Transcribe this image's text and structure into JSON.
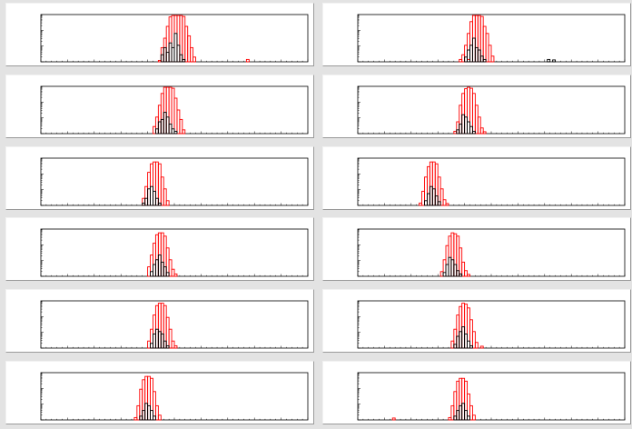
{
  "colors": {
    "background": "#e3e3e3",
    "pad": "#ffffff",
    "frame": "#000000",
    "series_red": "#ff0000",
    "series_black": "#000000"
  },
  "chart_data": [
    {
      "type": "bar",
      "xlim": [
        0,
        100
      ],
      "scale": "log",
      "series": [
        {
          "color": "#ff0000",
          "values": [
            [
              44,
              0.03
            ],
            [
              45,
              0.3
            ],
            [
              46,
              0.5
            ],
            [
              47,
              0.75
            ],
            [
              48,
              0.95
            ],
            [
              49,
              0.98
            ],
            [
              50,
              0.98
            ],
            [
              51,
              0.98
            ],
            [
              52,
              0.98
            ],
            [
              53,
              0.96
            ],
            [
              54,
              0.75
            ],
            [
              55,
              0.55
            ],
            [
              56,
              0.3
            ],
            [
              57,
              0.1
            ],
            [
              77,
              0.05
            ]
          ]
        },
        {
          "color": "#000000",
          "values": [
            [
              45,
              0.15
            ],
            [
              46,
              0.3
            ],
            [
              47,
              0.2
            ],
            [
              48,
              0.4
            ],
            [
              49,
              0.3
            ],
            [
              50,
              0.6
            ],
            [
              51,
              0.35
            ],
            [
              52,
              0.15
            ],
            [
              53,
              0.05
            ]
          ]
        }
      ]
    },
    {
      "type": "bar",
      "xlim": [
        0,
        100
      ],
      "scale": "log",
      "series": [
        {
          "color": "#ff0000",
          "values": [
            [
              39,
              0.15
            ],
            [
              40,
              0.35
            ],
            [
              41,
              0.6
            ],
            [
              42,
              0.85
            ],
            [
              43,
              0.98
            ],
            [
              44,
              0.98
            ],
            [
              45,
              0.98
            ],
            [
              46,
              0.96
            ],
            [
              47,
              0.75
            ],
            [
              48,
              0.6
            ],
            [
              49,
              0.35
            ],
            [
              50,
              0.12
            ],
            [
              41,
              0.05
            ],
            [
              38,
              0.05
            ]
          ]
        },
        {
          "color": "#000000",
          "values": [
            [
              40,
              0.1
            ],
            [
              41,
              0.25
            ],
            [
              42,
              0.35
            ],
            [
              43,
              0.5
            ],
            [
              44,
              0.3
            ],
            [
              45,
              0.25
            ],
            [
              46,
              0.12
            ],
            [
              47,
              0.05
            ],
            [
              71,
              0.05
            ],
            [
              73,
              0.04
            ]
          ]
        }
      ]
    },
    {
      "type": "bar",
      "xlim": [
        0,
        100
      ],
      "scale": "log",
      "series": [
        {
          "color": "#ff0000",
          "values": [
            [
              42,
              0.15
            ],
            [
              43,
              0.35
            ],
            [
              44,
              0.6
            ],
            [
              45,
              0.85
            ],
            [
              46,
              0.98
            ],
            [
              47,
              0.98
            ],
            [
              48,
              0.98
            ],
            [
              49,
              0.96
            ],
            [
              50,
              0.75
            ],
            [
              51,
              0.5
            ],
            [
              52,
              0.3
            ],
            [
              53,
              0.08
            ]
          ]
        },
        {
          "color": "#000000",
          "values": [
            [
              43,
              0.1
            ],
            [
              44,
              0.25
            ],
            [
              45,
              0.3
            ],
            [
              46,
              0.45
            ],
            [
              47,
              0.35
            ],
            [
              48,
              0.2
            ],
            [
              49,
              0.1
            ],
            [
              50,
              0.05
            ]
          ]
        }
      ]
    },
    {
      "type": "bar",
      "xlim": [
        0,
        100
      ],
      "scale": "log",
      "series": [
        {
          "color": "#ff0000",
          "values": [
            [
              36,
              0.05
            ],
            [
              37,
              0.25
            ],
            [
              38,
              0.6
            ],
            [
              39,
              0.85
            ],
            [
              40,
              0.95
            ],
            [
              41,
              0.98
            ],
            [
              42,
              0.96
            ],
            [
              43,
              0.85
            ],
            [
              44,
              0.6
            ],
            [
              45,
              0.35
            ],
            [
              46,
              0.12
            ],
            [
              47,
              0.04
            ]
          ]
        },
        {
          "color": "#000000",
          "values": [
            [
              37,
              0.08
            ],
            [
              38,
              0.2
            ],
            [
              39,
              0.4
            ],
            [
              40,
              0.35
            ],
            [
              41,
              0.25
            ],
            [
              42,
              0.15
            ],
            [
              43,
              0.05
            ]
          ]
        }
      ]
    },
    {
      "type": "bar",
      "xlim": [
        0,
        100
      ],
      "scale": "log",
      "series": [
        {
          "color": "#ff0000",
          "values": [
            [
              38,
              0.15
            ],
            [
              39,
              0.4
            ],
            [
              40,
              0.7
            ],
            [
              41,
              0.88
            ],
            [
              42,
              0.92
            ],
            [
              43,
              0.92
            ],
            [
              44,
              0.88
            ],
            [
              45,
              0.6
            ],
            [
              46,
              0.35
            ],
            [
              47,
              0.1
            ]
          ]
        },
        {
          "color": "#000000",
          "values": [
            [
              38,
              0.05
            ],
            [
              39,
              0.15
            ],
            [
              40,
              0.35
            ],
            [
              41,
              0.4
            ],
            [
              42,
              0.3
            ],
            [
              43,
              0.15
            ],
            [
              44,
              0.05
            ]
          ]
        }
      ]
    },
    {
      "type": "bar",
      "xlim": [
        0,
        100
      ],
      "scale": "log",
      "series": [
        {
          "color": "#ff0000",
          "values": [
            [
              23,
              0.05
            ],
            [
              24,
              0.3
            ],
            [
              25,
              0.6
            ],
            [
              26,
              0.82
            ],
            [
              27,
              0.92
            ],
            [
              28,
              0.92
            ],
            [
              29,
              0.88
            ],
            [
              30,
              0.6
            ],
            [
              31,
              0.35
            ],
            [
              32,
              0.12
            ],
            [
              33,
              0.04
            ]
          ]
        },
        {
          "color": "#000000",
          "values": [
            [
              25,
              0.1
            ],
            [
              26,
              0.25
            ],
            [
              27,
              0.4
            ],
            [
              28,
              0.35
            ],
            [
              29,
              0.2
            ],
            [
              30,
              0.08
            ]
          ]
        }
      ]
    },
    {
      "type": "bar",
      "xlim": [
        0,
        100
      ],
      "scale": "log",
      "series": [
        {
          "color": "#ff0000",
          "values": [
            [
              40,
              0.2
            ],
            [
              41,
              0.45
            ],
            [
              42,
              0.7
            ],
            [
              43,
              0.88
            ],
            [
              44,
              0.92
            ],
            [
              45,
              0.92
            ],
            [
              46,
              0.85
            ],
            [
              47,
              0.6
            ],
            [
              48,
              0.35
            ],
            [
              49,
              0.15
            ],
            [
              50,
              0.05
            ]
          ]
        },
        {
          "color": "#000000",
          "values": [
            [
              41,
              0.1
            ],
            [
              42,
              0.25
            ],
            [
              43,
              0.35
            ],
            [
              44,
              0.45
            ],
            [
              45,
              0.3
            ],
            [
              46,
              0.2
            ],
            [
              47,
              0.08
            ]
          ]
        }
      ]
    },
    {
      "type": "bar",
      "xlim": [
        0,
        100
      ],
      "scale": "log",
      "series": [
        {
          "color": "#ff0000",
          "values": [
            [
              31,
              0.1
            ],
            [
              32,
              0.35
            ],
            [
              33,
              0.65
            ],
            [
              34,
              0.85
            ],
            [
              35,
              0.92
            ],
            [
              36,
              0.9
            ],
            [
              37,
              0.85
            ],
            [
              38,
              0.6
            ],
            [
              39,
              0.3
            ],
            [
              40,
              0.12
            ],
            [
              41,
              0.04
            ]
          ]
        },
        {
          "color": "#000000",
          "values": [
            [
              32,
              0.08
            ],
            [
              33,
              0.25
            ],
            [
              34,
              0.4
            ],
            [
              35,
              0.35
            ],
            [
              36,
              0.25
            ],
            [
              37,
              0.12
            ],
            [
              38,
              0.05
            ]
          ]
        }
      ]
    },
    {
      "type": "bar",
      "xlim": [
        0,
        100
      ],
      "scale": "log",
      "series": [
        {
          "color": "#ff0000",
          "values": [
            [
              40,
              0.15
            ],
            [
              41,
              0.4
            ],
            [
              42,
              0.7
            ],
            [
              43,
              0.9
            ],
            [
              44,
              0.95
            ],
            [
              45,
              0.95
            ],
            [
              46,
              0.9
            ],
            [
              47,
              0.65
            ],
            [
              48,
              0.4
            ],
            [
              49,
              0.15
            ],
            [
              50,
              0.05
            ]
          ]
        },
        {
          "color": "#000000",
          "values": [
            [
              41,
              0.1
            ],
            [
              42,
              0.3
            ],
            [
              43,
              0.4
            ],
            [
              44,
              0.35
            ],
            [
              45,
              0.3
            ],
            [
              46,
              0.15
            ],
            [
              47,
              0.05
            ]
          ]
        }
      ]
    },
    {
      "type": "bar",
      "xlim": [
        0,
        100
      ],
      "scale": "log",
      "series": [
        {
          "color": "#ff0000",
          "values": [
            [
              35,
              0.15
            ],
            [
              36,
              0.4
            ],
            [
              37,
              0.7
            ],
            [
              38,
              0.88
            ],
            [
              39,
              0.95
            ],
            [
              40,
              0.93
            ],
            [
              41,
              0.85
            ],
            [
              42,
              0.6
            ],
            [
              43,
              0.35
            ],
            [
              44,
              0.12
            ],
            [
              46,
              0.04
            ]
          ]
        },
        {
          "color": "#000000",
          "values": [
            [
              36,
              0.08
            ],
            [
              37,
              0.25
            ],
            [
              38,
              0.35
            ],
            [
              39,
              0.45
            ],
            [
              40,
              0.3
            ],
            [
              41,
              0.15
            ],
            [
              42,
              0.05
            ]
          ]
        }
      ]
    },
    {
      "type": "bar",
      "xlim": [
        0,
        100
      ],
      "scale": "log",
      "series": [
        {
          "color": "#ff0000",
          "values": [
            [
              35,
              0.05
            ],
            [
              36,
              0.3
            ],
            [
              37,
              0.65
            ],
            [
              38,
              0.85
            ],
            [
              39,
              0.92
            ],
            [
              40,
              0.92
            ],
            [
              41,
              0.88
            ],
            [
              42,
              0.6
            ],
            [
              43,
              0.3
            ],
            [
              44,
              0.1
            ]
          ]
        },
        {
          "color": "#000000",
          "values": [
            [
              37,
              0.08
            ],
            [
              38,
              0.2
            ],
            [
              39,
              0.35
            ],
            [
              40,
              0.3
            ],
            [
              41,
              0.2
            ],
            [
              42,
              0.08
            ]
          ]
        }
      ]
    },
    {
      "type": "bar",
      "xlim": [
        0,
        100
      ],
      "scale": "log",
      "series": [
        {
          "color": "#ff0000",
          "values": [
            [
              34,
              0.05
            ],
            [
              35,
              0.3
            ],
            [
              36,
              0.6
            ],
            [
              37,
              0.82
            ],
            [
              38,
              0.88
            ],
            [
              39,
              0.88
            ],
            [
              40,
              0.82
            ],
            [
              41,
              0.55
            ],
            [
              42,
              0.3
            ],
            [
              43,
              0.1
            ],
            [
              13,
              0.04
            ]
          ]
        },
        {
          "color": "#000000",
          "values": [
            [
              36,
              0.08
            ],
            [
              37,
              0.2
            ],
            [
              38,
              0.3
            ],
            [
              39,
              0.35
            ],
            [
              40,
              0.2
            ],
            [
              41,
              0.08
            ]
          ]
        }
      ]
    }
  ]
}
